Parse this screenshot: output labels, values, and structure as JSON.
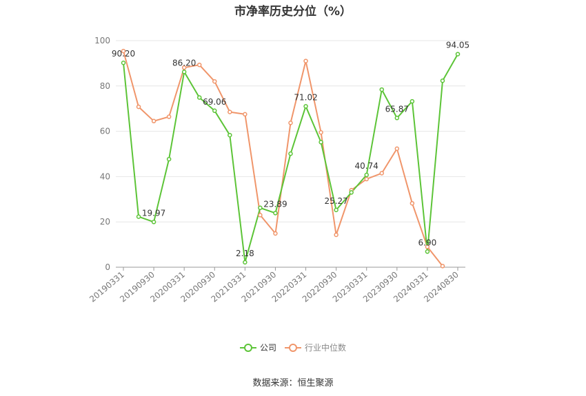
{
  "title": "市净率历史分位（%）",
  "source": "数据来源：恒生聚源",
  "chart_data": {
    "type": "line",
    "title": "市净率历史分位（%）",
    "x": [
      "20190331",
      "20190630",
      "20190930",
      "20191231",
      "20200331",
      "20200630",
      "20200930",
      "20201231",
      "20210331",
      "20210630",
      "20210930",
      "20211231",
      "20220331",
      "20220630",
      "20220930",
      "20221231",
      "20230331",
      "20230630",
      "20230930",
      "20231231",
      "20240331",
      "20240630",
      "20240830"
    ],
    "x_tick_labels": [
      "20190331",
      "20190930",
      "20200331",
      "20200930",
      "20210331",
      "20210930",
      "20220331",
      "20220930",
      "20230331",
      "20230930",
      "20240331",
      "20240830"
    ],
    "ylim": [
      0,
      100
    ],
    "y_ticks": [
      0,
      20,
      40,
      60,
      80,
      100
    ],
    "grid": true,
    "legend_position": "bottom",
    "series": [
      {
        "name": "公司",
        "color": "#5cc437",
        "values": [
          90.2,
          22.3,
          19.97,
          47.7,
          86.2,
          74.9,
          69.06,
          58.3,
          2.18,
          26.2,
          23.89,
          50.1,
          71.02,
          55.2,
          25.27,
          33.0,
          40.74,
          78.4,
          65.87,
          73.2,
          6.9,
          82.3,
          94.05
        ]
      },
      {
        "name": "行业中位数",
        "color": "#f0956a",
        "values": [
          95.4,
          70.8,
          64.5,
          66.4,
          88.1,
          89.3,
          82.0,
          68.5,
          67.5,
          23.0,
          14.9,
          63.7,
          91.0,
          59.5,
          14.3,
          34.0,
          38.9,
          41.5,
          52.3,
          28.2,
          9.0,
          0.5,
          null
        ]
      }
    ],
    "data_labels": [
      {
        "series": 0,
        "index": 0,
        "text": "90.20"
      },
      {
        "series": 0,
        "index": 2,
        "text": "19.97"
      },
      {
        "series": 0,
        "index": 4,
        "text": "86.20"
      },
      {
        "series": 0,
        "index": 6,
        "text": "69.06"
      },
      {
        "series": 0,
        "index": 8,
        "text": "2.18"
      },
      {
        "series": 0,
        "index": 10,
        "text": "23.89"
      },
      {
        "series": 0,
        "index": 12,
        "text": "71.02"
      },
      {
        "series": 0,
        "index": 14,
        "text": "25.27"
      },
      {
        "series": 0,
        "index": 16,
        "text": "40.74"
      },
      {
        "series": 0,
        "index": 18,
        "text": "65.87"
      },
      {
        "series": 0,
        "index": 20,
        "text": "6.90"
      },
      {
        "series": 0,
        "index": 22,
        "text": "94.05"
      }
    ]
  }
}
